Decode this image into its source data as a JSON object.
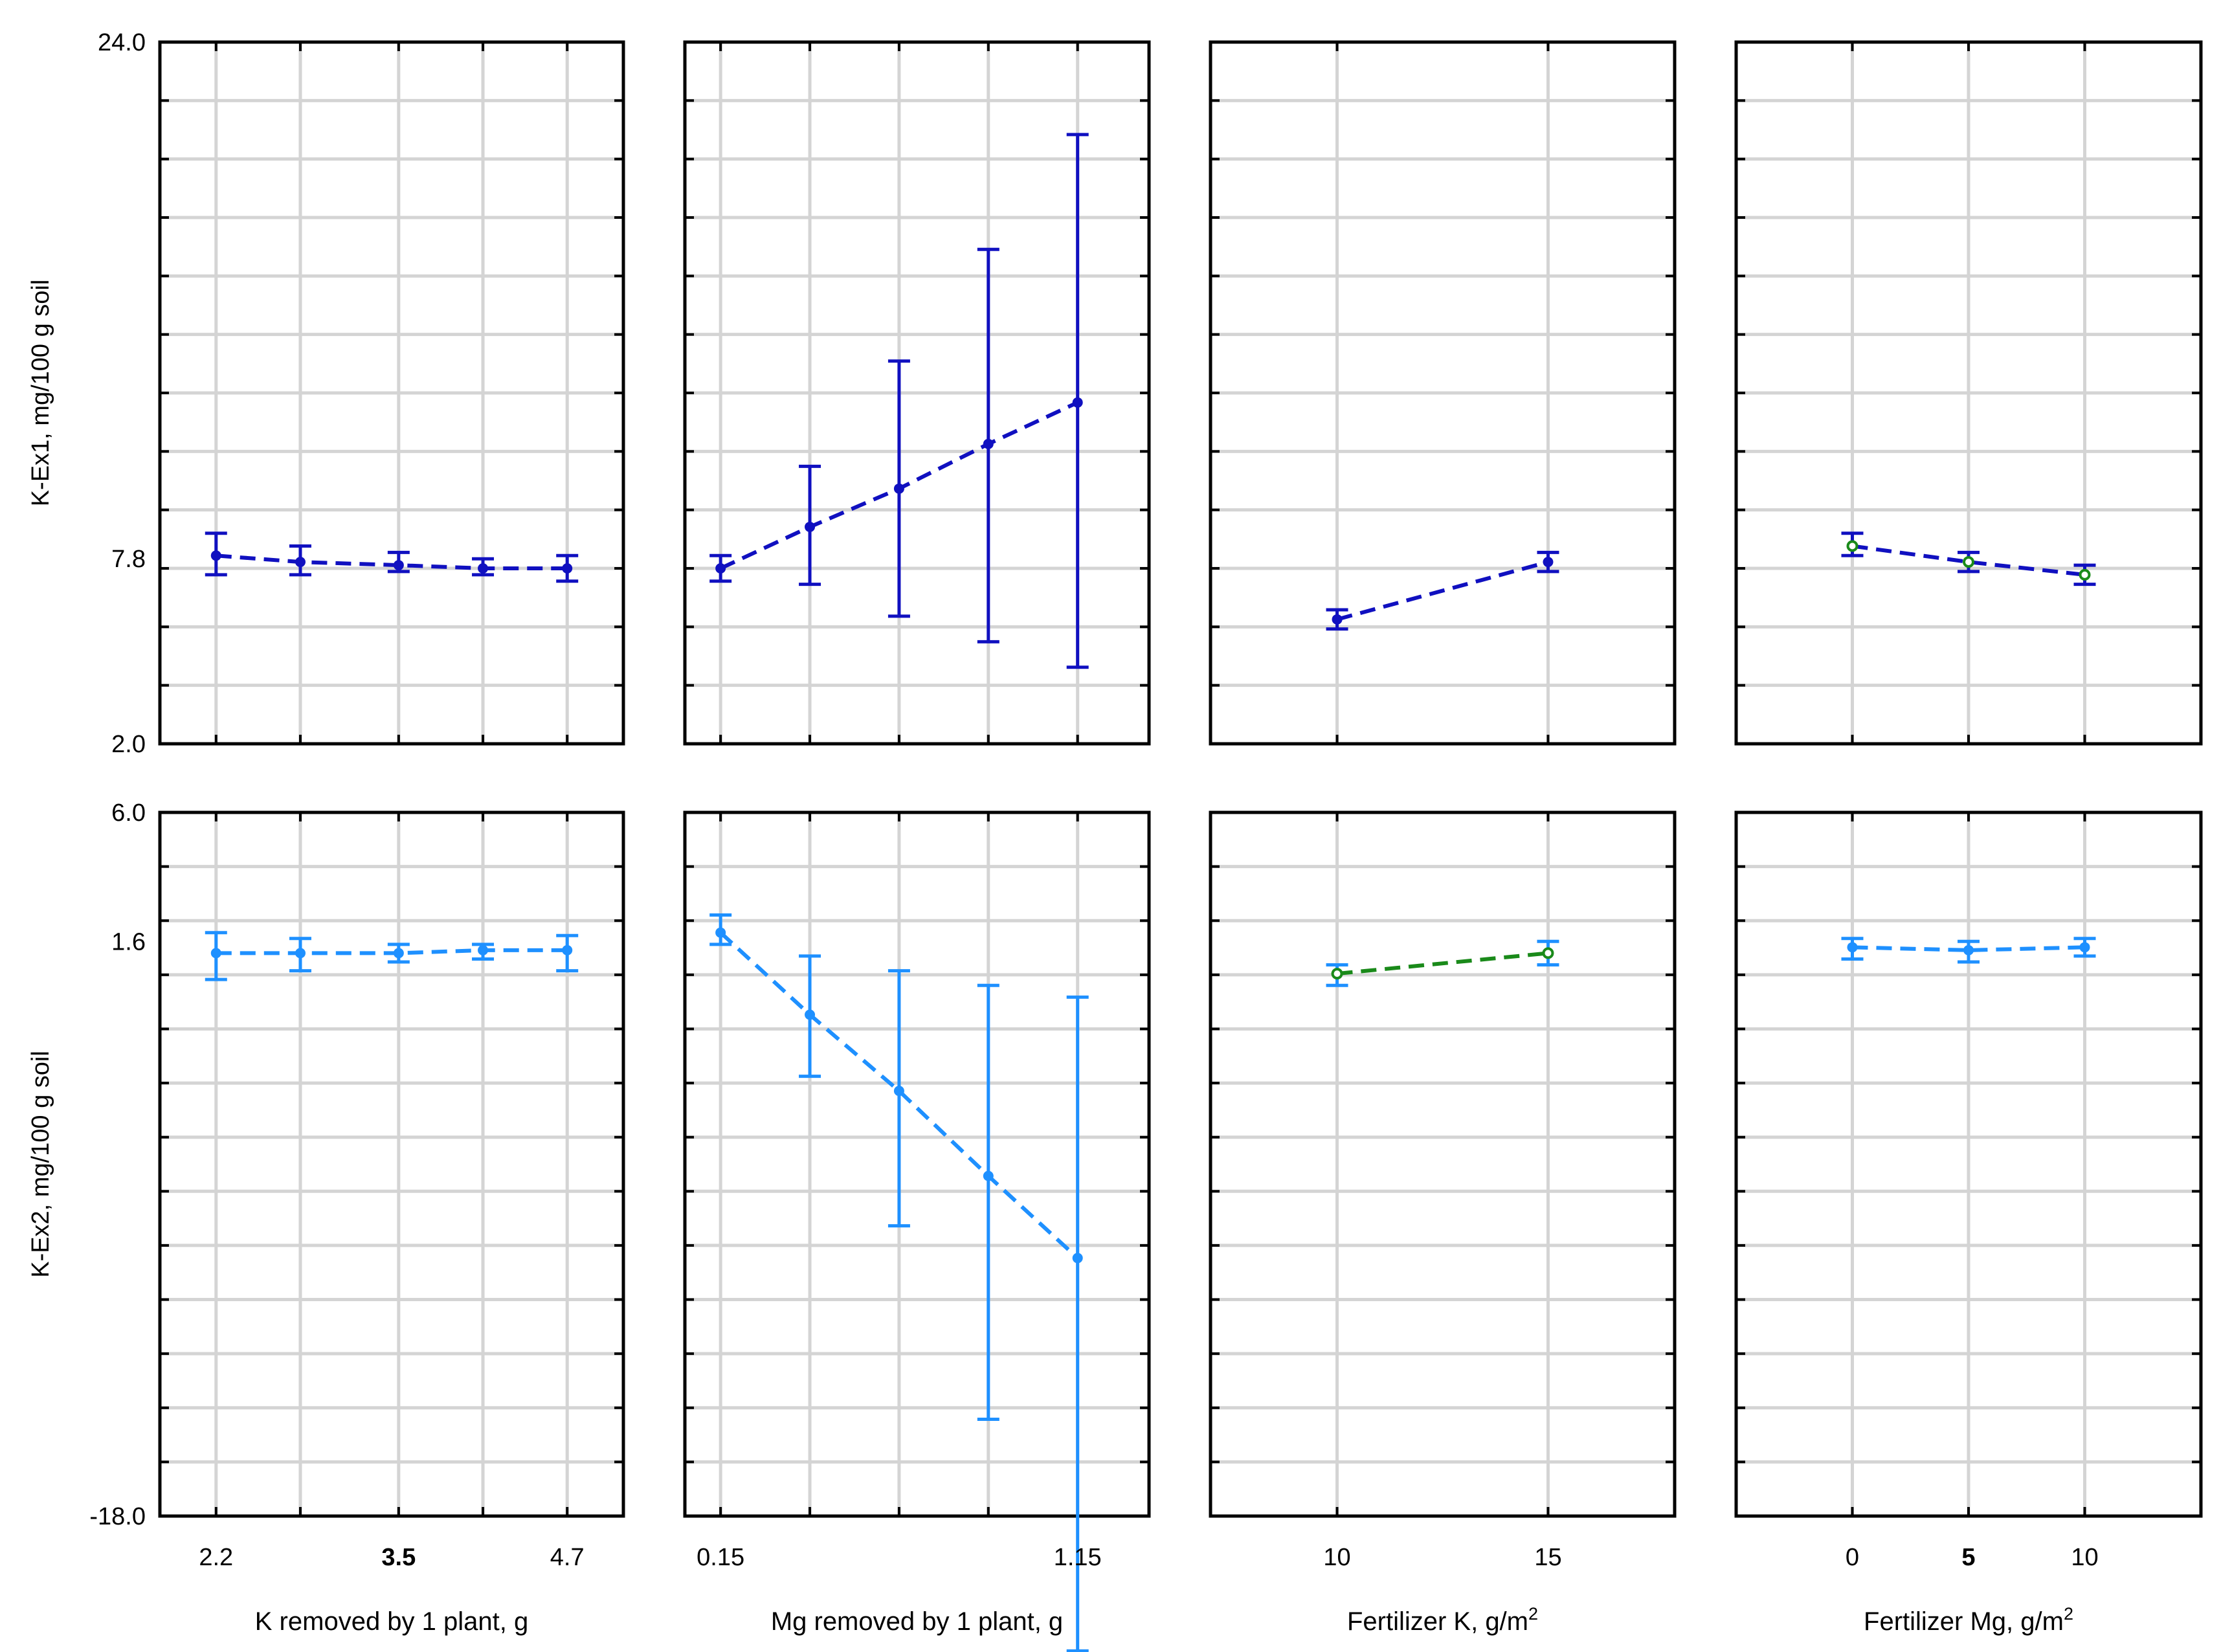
{
  "colors": {
    "row1_series": "#1010c0",
    "row2_series": "#1e90ff",
    "alt_series": "#1a8a1a",
    "grid": "#d4d4d4",
    "frame": "#000000"
  },
  "chart_data": {
    "type": "line",
    "title": "",
    "rows": [
      {
        "ylabel": "K-Ex1, mg/100 g soil",
        "ylim": [
          2.0,
          24.0
        ],
        "tick_labels": [
          "24.0",
          "7.8",
          "2.0"
        ],
        "tick_values": [
          24.0,
          7.8,
          2.0
        ],
        "minor_ticks": 12
      },
      {
        "ylabel": "K-Ex2, mg/100 g soil",
        "ylim": [
          -18.0,
          6.0
        ],
        "tick_labels": [
          "6.0",
          "1.6",
          "-18.0"
        ],
        "tick_values": [
          6.0,
          1.6,
          -18.0
        ],
        "minor_ticks": 13
      }
    ],
    "panels": [
      {
        "id": "r1c1",
        "row": 0,
        "col": 0,
        "xlabel": "K removed by 1 plant, g",
        "xlabel_sup": "",
        "xlim": [
          1.8,
          5.1
        ],
        "x_grid": [
          2.2,
          2.8,
          3.5,
          4.1,
          4.7
        ],
        "x_ticks": [
          {
            "v": 2.2,
            "label": "2.2",
            "bold": false
          },
          {
            "v": 3.5,
            "label": "3.5",
            "bold": true
          },
          {
            "v": 4.7,
            "label": "4.7",
            "bold": false
          }
        ],
        "series": [
          {
            "name": "K-Ex1",
            "color_key": "row1_series",
            "marker": "filled",
            "x": [
              2.2,
              2.8,
              3.5,
              4.1,
              4.7
            ],
            "y": [
              7.9,
              7.7,
              7.6,
              7.5,
              7.5
            ],
            "lo": [
              7.3,
              7.3,
              7.4,
              7.3,
              7.1
            ],
            "hi": [
              8.6,
              8.2,
              8.0,
              7.8,
              7.9
            ]
          }
        ]
      },
      {
        "id": "r1c2",
        "row": 0,
        "col": 1,
        "xlabel": "Mg removed by 1 plant, g",
        "xlabel_sup": "",
        "xlim": [
          0.05,
          1.35
        ],
        "x_grid": [
          0.15,
          0.4,
          0.65,
          0.9,
          1.15
        ],
        "x_ticks": [
          {
            "v": 0.15,
            "label": "0.15",
            "bold": false
          },
          {
            "v": 1.15,
            "label": "1.15",
            "bold": false
          }
        ],
        "series": [
          {
            "name": "K-Ex1",
            "color_key": "row1_series",
            "marker": "filled",
            "x": [
              0.15,
              0.4,
              0.65,
              0.9,
              1.15
            ],
            "y": [
              7.5,
              8.8,
              10.0,
              11.4,
              12.7
            ],
            "lo": [
              7.1,
              7.0,
              6.0,
              5.2,
              4.4
            ],
            "hi": [
              7.9,
              10.7,
              14.0,
              17.5,
              21.1
            ]
          }
        ]
      },
      {
        "id": "r1c3",
        "row": 0,
        "col": 2,
        "xlabel": "Fertilizer K, g/m",
        "xlabel_sup": "2",
        "xlim": [
          7.0,
          18.0
        ],
        "x_grid": [
          10,
          15
        ],
        "x_ticks": [
          {
            "v": 10,
            "label": "10",
            "bold": false
          },
          {
            "v": 15,
            "label": "15",
            "bold": false
          }
        ],
        "series": [
          {
            "name": "K-Ex1",
            "color_key": "row1_series",
            "marker": "filled",
            "x": [
              10,
              15
            ],
            "y": [
              5.9,
              7.7
            ],
            "lo": [
              5.6,
              7.4
            ],
            "hi": [
              6.2,
              8.0
            ]
          }
        ]
      },
      {
        "id": "r1c4",
        "row": 0,
        "col": 3,
        "xlabel": "Fertilizer Mg, g/m",
        "xlabel_sup": "2",
        "xlim": [
          -5.0,
          15.0
        ],
        "x_grid": [
          0,
          5,
          10
        ],
        "x_ticks": [
          {
            "v": 0,
            "label": "0",
            "bold": false
          },
          {
            "v": 5,
            "label": "5",
            "bold": true
          },
          {
            "v": 10,
            "label": "10",
            "bold": false
          }
        ],
        "series": [
          {
            "name": "K-Ex1",
            "color_key": "row1_series",
            "marker": "open",
            "x": [
              0,
              5,
              10
            ],
            "y": [
              8.2,
              7.7,
              7.3
            ],
            "lo": [
              7.9,
              7.4,
              7.0
            ],
            "hi": [
              8.6,
              8.0,
              7.6
            ]
          }
        ]
      },
      {
        "id": "r2c1",
        "row": 1,
        "col": 0,
        "xlabel": "K removed by 1 plant, g",
        "xlabel_sup": "",
        "xlim": [
          1.8,
          5.1
        ],
        "x_grid": [
          2.2,
          2.8,
          3.5,
          4.1,
          4.7
        ],
        "x_ticks": [
          {
            "v": 2.2,
            "label": "2.2",
            "bold": false
          },
          {
            "v": 3.5,
            "label": "3.5",
            "bold": true
          },
          {
            "v": 4.7,
            "label": "4.7",
            "bold": false
          }
        ],
        "series": [
          {
            "name": "K-Ex2",
            "color_key": "row2_series",
            "marker": "filled",
            "x": [
              2.2,
              2.8,
              3.5,
              4.1,
              4.7
            ],
            "y": [
              1.2,
              1.2,
              1.2,
              1.3,
              1.3
            ],
            "lo": [
              0.3,
              0.6,
              0.9,
              1.0,
              0.6
            ],
            "hi": [
              1.9,
              1.7,
              1.5,
              1.5,
              1.8
            ]
          }
        ]
      },
      {
        "id": "r2c2",
        "row": 1,
        "col": 1,
        "xlabel": "Mg removed by 1 plant, g",
        "xlabel_sup": "",
        "xlim": [
          0.05,
          1.35
        ],
        "x_grid": [
          0.15,
          0.4,
          0.65,
          0.9,
          1.15
        ],
        "x_ticks": [
          {
            "v": 0.15,
            "label": "0.15",
            "bold": false
          },
          {
            "v": 1.15,
            "label": "1.15",
            "bold": false
          }
        ],
        "series": [
          {
            "name": "K-Ex2",
            "color_key": "row2_series",
            "marker": "filled",
            "x": [
              0.15,
              0.4,
              0.65,
              0.9,
              1.15
            ],
            "y": [
              1.9,
              -0.9,
              -3.5,
              -6.4,
              -9.2
            ],
            "lo": [
              1.5,
              -3.0,
              -8.1,
              -14.7,
              -22.6
            ],
            "hi": [
              2.5,
              1.1,
              0.6,
              0.1,
              -0.3
            ]
          }
        ]
      },
      {
        "id": "r2c3",
        "row": 1,
        "col": 2,
        "xlabel": "Fertilizer K, g/m",
        "xlabel_sup": "2",
        "xlim": [
          7.0,
          18.0
        ],
        "x_grid": [
          10,
          15
        ],
        "x_ticks": [
          {
            "v": 10,
            "label": "10",
            "bold": false
          },
          {
            "v": 15,
            "label": "15",
            "bold": false
          }
        ],
        "series": [
          {
            "name": "K-Ex2",
            "color_key": "row2_series",
            "line_color_key": "alt_series",
            "marker": "open",
            "x": [
              10,
              15
            ],
            "y": [
              0.5,
              1.2
            ],
            "lo": [
              0.1,
              0.8
            ],
            "hi": [
              0.8,
              1.6
            ]
          }
        ]
      },
      {
        "id": "r2c4",
        "row": 1,
        "col": 3,
        "xlabel": "Fertilizer Mg, g/m",
        "xlabel_sup": "2",
        "xlim": [
          -5.0,
          15.0
        ],
        "x_grid": [
          0,
          5,
          10
        ],
        "x_ticks": [
          {
            "v": 0,
            "label": "0",
            "bold": false
          },
          {
            "v": 5,
            "label": "5",
            "bold": true
          },
          {
            "v": 10,
            "label": "10",
            "bold": false
          }
        ],
        "series": [
          {
            "name": "K-Ex2",
            "color_key": "row2_series",
            "marker": "filled",
            "x": [
              0,
              5,
              10
            ],
            "y": [
              1.4,
              1.3,
              1.4
            ],
            "lo": [
              1.0,
              0.9,
              1.1
            ],
            "hi": [
              1.7,
              1.6,
              1.7
            ]
          }
        ]
      }
    ]
  }
}
